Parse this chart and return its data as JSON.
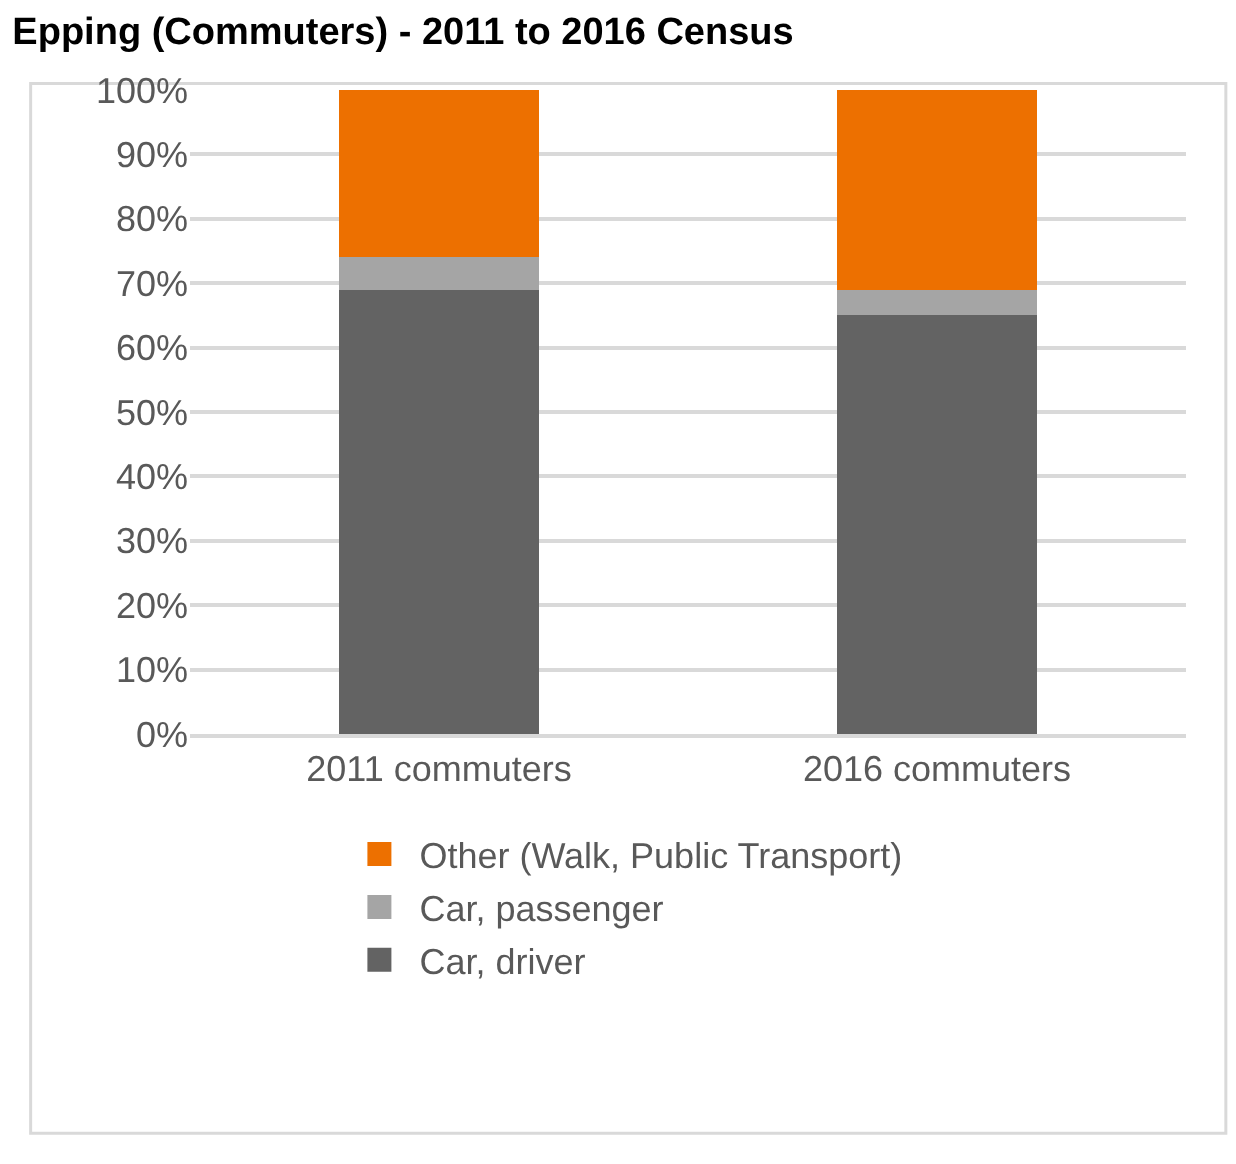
{
  "chart_data": {
    "type": "bar",
    "title": "Epping (Commuters) - 2011 to 2016 Census",
    "categories": [
      "2011 commuters",
      "2016 commuters"
    ],
    "stacked": true,
    "series": [
      {
        "name": "Car, driver",
        "color": "#636363",
        "values": [
          69,
          65
        ]
      },
      {
        "name": "Car, passenger",
        "color": "#a5a5a5",
        "values": [
          5,
          4
        ]
      },
      {
        "name": "Other (Walk, Public Transport)",
        "color": "#ed7000",
        "values": [
          26,
          31
        ]
      }
    ],
    "ylim": [
      0,
      100
    ],
    "yticks": [
      {
        "value": 0,
        "label": "0%"
      },
      {
        "value": 10,
        "label": "10%"
      },
      {
        "value": 20,
        "label": "20%"
      },
      {
        "value": 30,
        "label": "30%"
      },
      {
        "value": 40,
        "label": "40%"
      },
      {
        "value": 50,
        "label": "50%"
      },
      {
        "value": 60,
        "label": "60%"
      },
      {
        "value": 70,
        "label": "70%"
      },
      {
        "value": 80,
        "label": "80%"
      },
      {
        "value": 90,
        "label": "90%"
      },
      {
        "value": 100,
        "label": "100%"
      }
    ],
    "grid": "y",
    "legend": "bottom"
  }
}
